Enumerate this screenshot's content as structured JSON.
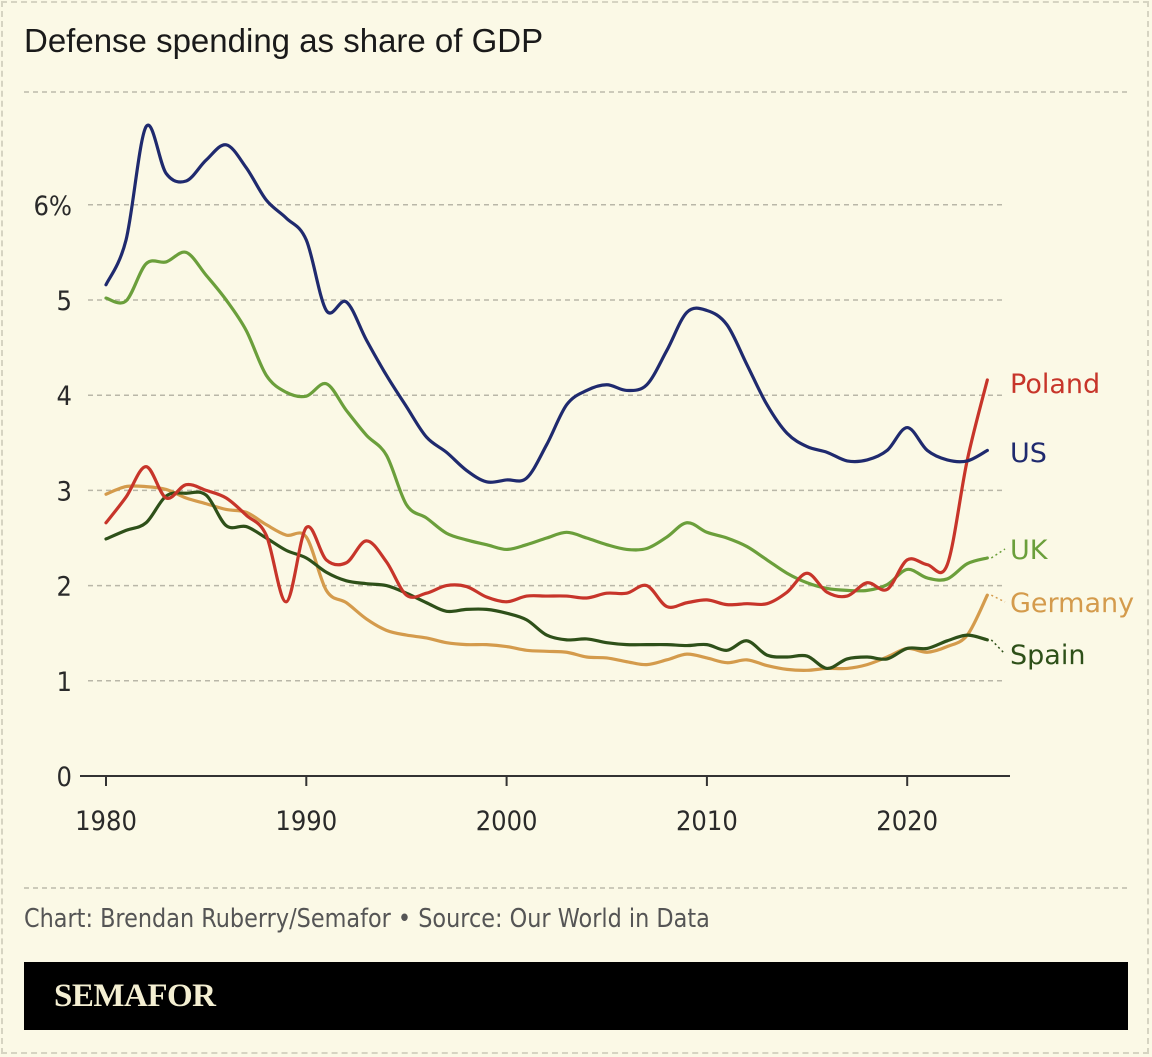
{
  "title": "Defense spending as share of GDP",
  "source": "Chart: Brendan Ruberry/Semafor • Source: Our World in Data",
  "brand": "SEMAFOR",
  "chart_data": {
    "type": "line",
    "title": "Defense spending as share of GDP",
    "xlabel": "",
    "ylabel": "",
    "xlim": [
      1980,
      2024
    ],
    "ylim": [
      0,
      7
    ],
    "grid": true,
    "yticks": [
      0,
      1,
      2,
      3,
      4,
      5,
      6
    ],
    "ytick_labels": [
      "0",
      "1",
      "2",
      "3",
      "4",
      "5",
      "6%"
    ],
    "xticks": [
      1980,
      1990,
      2000,
      2010,
      2020
    ],
    "xtick_labels": [
      "1980",
      "1990",
      "2000",
      "2010",
      "2020"
    ],
    "legend": "direct labels at line ends (right)",
    "x": [
      1980,
      1981,
      1982,
      1983,
      1984,
      1985,
      1986,
      1987,
      1988,
      1989,
      1990,
      1991,
      1992,
      1993,
      1994,
      1995,
      1996,
      1997,
      1998,
      1999,
      2000,
      2001,
      2002,
      2003,
      2004,
      2005,
      2006,
      2007,
      2008,
      2009,
      2010,
      2011,
      2012,
      2013,
      2014,
      2015,
      2016,
      2017,
      2018,
      2019,
      2020,
      2021,
      2022,
      2023,
      2024
    ],
    "series": [
      {
        "name": "US",
        "color": "#1f2a6e",
        "values": [
          5.16,
          5.63,
          6.82,
          6.33,
          6.25,
          6.47,
          6.63,
          6.39,
          6.05,
          5.86,
          5.63,
          4.89,
          4.98,
          4.58,
          4.21,
          3.88,
          3.56,
          3.4,
          3.21,
          3.09,
          3.11,
          3.13,
          3.48,
          3.9,
          4.05,
          4.11,
          4.05,
          4.11,
          4.47,
          4.87,
          4.89,
          4.74,
          4.32,
          3.9,
          3.6,
          3.46,
          3.4,
          3.31,
          3.32,
          3.42,
          3.66,
          3.42,
          3.32,
          3.31,
          3.42
        ]
      },
      {
        "name": "UK",
        "color": "#6b9f3b",
        "values": [
          5.02,
          4.99,
          5.38,
          5.4,
          5.5,
          5.26,
          5.0,
          4.68,
          4.21,
          4.03,
          3.99,
          4.12,
          3.84,
          3.58,
          3.37,
          2.85,
          2.71,
          2.55,
          2.48,
          2.43,
          2.38,
          2.43,
          2.5,
          2.56,
          2.5,
          2.43,
          2.38,
          2.39,
          2.51,
          2.66,
          2.56,
          2.5,
          2.41,
          2.27,
          2.13,
          2.03,
          1.97,
          1.95,
          1.95,
          2.01,
          2.17,
          2.08,
          2.07,
          2.23,
          2.29
        ]
      },
      {
        "name": "Poland",
        "color": "#c7352a",
        "values": [
          2.66,
          2.93,
          3.25,
          2.92,
          3.06,
          3.0,
          2.92,
          2.74,
          2.53,
          1.83,
          2.61,
          2.27,
          2.24,
          2.47,
          2.25,
          1.9,
          1.92,
          2.0,
          1.99,
          1.88,
          1.83,
          1.89,
          1.89,
          1.89,
          1.87,
          1.92,
          1.92,
          2.0,
          1.78,
          1.82,
          1.85,
          1.8,
          1.81,
          1.81,
          1.93,
          2.13,
          1.93,
          1.89,
          2.03,
          1.96,
          2.27,
          2.22,
          2.22,
          3.32,
          4.16
        ]
      },
      {
        "name": "Germany",
        "color": "#d49b4c",
        "values": [
          2.96,
          3.04,
          3.04,
          3.01,
          2.92,
          2.86,
          2.8,
          2.77,
          2.64,
          2.53,
          2.51,
          1.95,
          1.82,
          1.65,
          1.53,
          1.48,
          1.45,
          1.4,
          1.38,
          1.38,
          1.36,
          1.32,
          1.31,
          1.3,
          1.25,
          1.24,
          1.2,
          1.17,
          1.22,
          1.28,
          1.24,
          1.19,
          1.22,
          1.16,
          1.12,
          1.11,
          1.13,
          1.13,
          1.17,
          1.25,
          1.34,
          1.3,
          1.36,
          1.48,
          1.9
        ]
      },
      {
        "name": "Spain",
        "color": "#2e5019",
        "values": [
          2.49,
          2.58,
          2.66,
          2.94,
          2.97,
          2.95,
          2.63,
          2.62,
          2.5,
          2.37,
          2.29,
          2.14,
          2.05,
          2.02,
          2.0,
          1.92,
          1.82,
          1.73,
          1.75,
          1.75,
          1.71,
          1.64,
          1.48,
          1.43,
          1.44,
          1.4,
          1.38,
          1.38,
          1.38,
          1.37,
          1.38,
          1.32,
          1.42,
          1.27,
          1.25,
          1.26,
          1.13,
          1.23,
          1.25,
          1.23,
          1.34,
          1.34,
          1.42,
          1.48,
          1.43
        ]
      }
    ]
  }
}
